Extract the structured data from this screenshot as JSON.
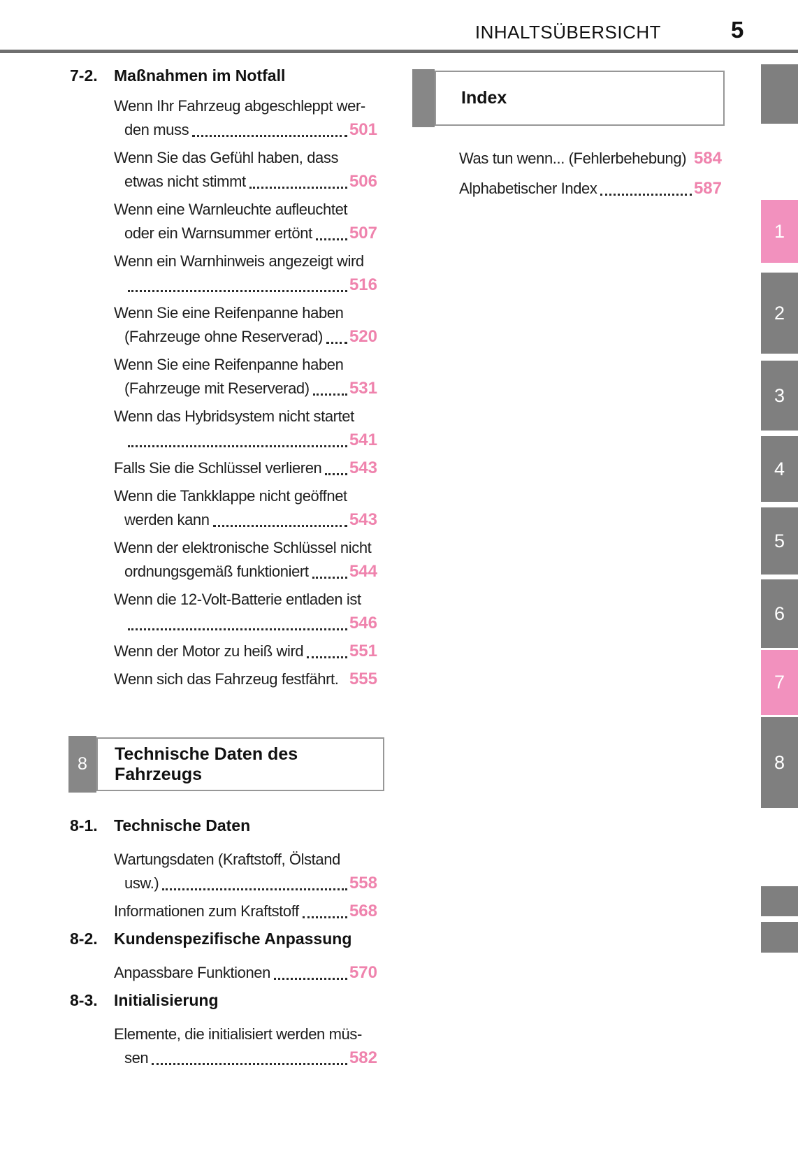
{
  "page": {
    "header_title": "INHALTSÜBERSICHT",
    "page_number": "5"
  },
  "colors": {
    "accent_pink_numbers": "#ef83ad",
    "tab_pink": "#f291be",
    "tab_gray": "#7f7f7f",
    "rule_gray": "#6f6f6f"
  },
  "left_column": {
    "section": {
      "number": "7-2.",
      "title": "Maßnahmen im Notfall"
    },
    "entries": [
      {
        "lines": [
          "Wenn Ihr Fahrzeug abgeschleppt wer-",
          "den muss"
        ],
        "page": "501",
        "leader": true
      },
      {
        "lines": [
          "Wenn Sie das Gefühl haben, dass",
          "etwas nicht stimmt"
        ],
        "page": "506",
        "leader": true
      },
      {
        "lines": [
          "Wenn eine Warnleuchte aufleuchtet",
          "oder ein Warnsummer ertönt"
        ],
        "page": "507",
        "leader": true
      },
      {
        "lines": [
          "Wenn ein Warnhinweis angezeigt wird",
          ""
        ],
        "page": "516",
        "leader": true
      },
      {
        "lines": [
          "Wenn Sie eine Reifenpanne haben",
          "(Fahrzeuge ohne Reserverad)"
        ],
        "page": "520",
        "leader": true
      },
      {
        "lines": [
          "Wenn Sie eine Reifenpanne haben",
          "(Fahrzeuge mit Reserverad)"
        ],
        "page": "531",
        "leader": true
      },
      {
        "lines": [
          "Wenn das Hybridsystem nicht startet",
          ""
        ],
        "page": "541",
        "leader": true
      },
      {
        "lines": [
          "Falls Sie die Schlüssel verlieren"
        ],
        "page": "543",
        "leader": true
      },
      {
        "lines": [
          "Wenn die Tankklappe nicht geöffnet",
          "werden kann"
        ],
        "page": "543",
        "leader": true
      },
      {
        "lines": [
          "Wenn der elektronische Schlüssel nicht",
          "ordnungsgemäß funktioniert"
        ],
        "page": "544",
        "leader": true
      },
      {
        "lines": [
          "Wenn die 12-Volt-Batterie entladen ist",
          ""
        ],
        "page": "546",
        "leader": true
      },
      {
        "lines": [
          "Wenn der Motor zu heiß wird"
        ],
        "page": "551",
        "leader": true
      },
      {
        "lines": [
          "Wenn sich das Fahrzeug festfährt."
        ],
        "page": "555",
        "leader": false
      }
    ],
    "chapter_banner": {
      "number": "8",
      "title": "Technische Daten des Fahrzeugs"
    },
    "subsections": [
      {
        "number": "8-1.",
        "title": "Technische Daten",
        "entries": [
          {
            "lines": [
              "Wartungsdaten (Kraftstoff, Ölstand",
              "usw.)"
            ],
            "page": "558",
            "leader": true
          },
          {
            "lines": [
              "Informationen zum Kraftstoff"
            ],
            "page": "568",
            "leader": true
          }
        ]
      },
      {
        "number": "8-2.",
        "title": "Kundenspezifische Anpassung",
        "entries": [
          {
            "lines": [
              "Anpassbare Funktionen"
            ],
            "page": "570",
            "leader": true
          }
        ]
      },
      {
        "number": "8-3.",
        "title": "Initialisierung",
        "entries": [
          {
            "lines": [
              "Elemente, die initialisiert werden müs-",
              "sen"
            ],
            "page": "582",
            "leader": true
          }
        ]
      }
    ]
  },
  "right_column": {
    "index_banner": {
      "title": "Index"
    },
    "entries": [
      {
        "lines": [
          "Was tun wenn... (Fehlerbehebung)"
        ],
        "page": "584",
        "leader": false
      },
      {
        "lines": [
          "Alphabetischer Index"
        ],
        "page": "587",
        "leader": true
      }
    ]
  },
  "side_tabs": [
    {
      "label": "",
      "active": false
    },
    {
      "label": "1",
      "active": true
    },
    {
      "label": "2",
      "active": false
    },
    {
      "label": "3",
      "active": false
    },
    {
      "label": "4",
      "active": false
    },
    {
      "label": "5",
      "active": false
    },
    {
      "label": "6",
      "active": false
    },
    {
      "label": "7",
      "active": true
    },
    {
      "label": "8",
      "active": false
    },
    {
      "label": "",
      "active": false
    },
    {
      "label": "",
      "active": false
    }
  ]
}
